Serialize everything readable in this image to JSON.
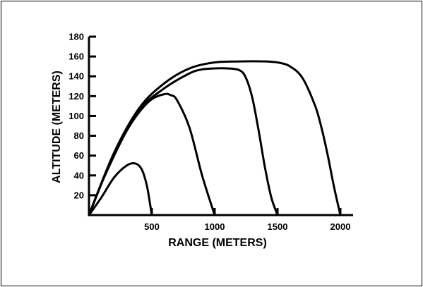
{
  "chart_data": {
    "type": "line",
    "xlabel": "RANGE (METERS)",
    "ylabel": "ALTITUDE (METERS)",
    "xlim": [
      0,
      2100
    ],
    "ylim": [
      0,
      180
    ],
    "xticks": [
      500,
      1000,
      1500,
      2000
    ],
    "yticks": [
      20,
      40,
      60,
      80,
      100,
      120,
      140,
      160,
      180
    ],
    "grid": false,
    "color": "#000000",
    "series": [
      {
        "x": [
          0,
          100,
          200,
          300,
          370,
          420,
          460,
          490,
          500
        ],
        "y": [
          0,
          18,
          38,
          50,
          52,
          46,
          30,
          8,
          0
        ]
      },
      {
        "x": [
          0,
          100,
          200,
          300,
          400,
          500,
          600,
          650,
          700,
          800,
          900,
          1000
        ],
        "y": [
          0,
          32,
          60,
          85,
          104,
          117,
          122,
          121,
          116,
          88,
          40,
          0
        ]
      },
      {
        "x": [
          0,
          200,
          400,
          600,
          800,
          900,
          1000,
          1100,
          1200,
          1250,
          1300,
          1350,
          1400,
          1450,
          1500
        ],
        "y": [
          0,
          62,
          106,
          128,
          143,
          147,
          148,
          148,
          146,
          138,
          118,
          85,
          48,
          18,
          0
        ]
      },
      {
        "x": [
          0,
          200,
          400,
          600,
          800,
          1000,
          1200,
          1400,
          1500,
          1600,
          1700,
          1800,
          1850,
          1900,
          1950,
          2000
        ],
        "y": [
          0,
          63,
          108,
          133,
          148,
          154,
          155,
          155,
          154,
          150,
          138,
          110,
          88,
          60,
          28,
          0
        ]
      }
    ]
  }
}
